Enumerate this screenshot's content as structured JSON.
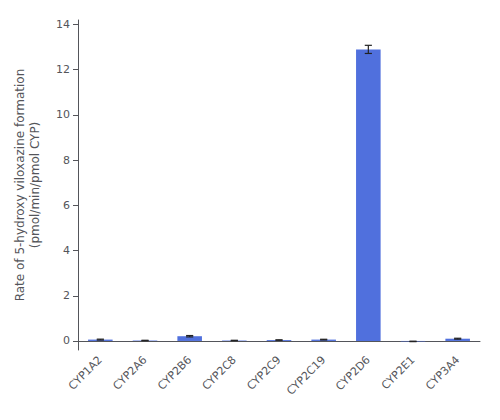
{
  "chart_data": {
    "type": "bar",
    "categories": [
      "CYP1A2",
      "CYP2A6",
      "CYP2B6",
      "CYP2C8",
      "CYP2C9",
      "CYP2C19",
      "CYP2D6",
      "CYP2E1",
      "CYP3A4"
    ],
    "values": [
      0.06,
      0.02,
      0.21,
      0.02,
      0.04,
      0.06,
      12.9,
      -0.02,
      0.1
    ],
    "errors": [
      0.02,
      0.01,
      0.03,
      0.01,
      0.01,
      0.015,
      0.18,
      0.01,
      0.02
    ],
    "ylabel": "Rate of 5-hydroxy viloxazine formation\n(pmol/min/pmol CYP)",
    "ylim": [
      -0.4,
      14.2
    ],
    "yticks": [
      0,
      2,
      4,
      6,
      8,
      10,
      12,
      14
    ],
    "grid": false
  }
}
